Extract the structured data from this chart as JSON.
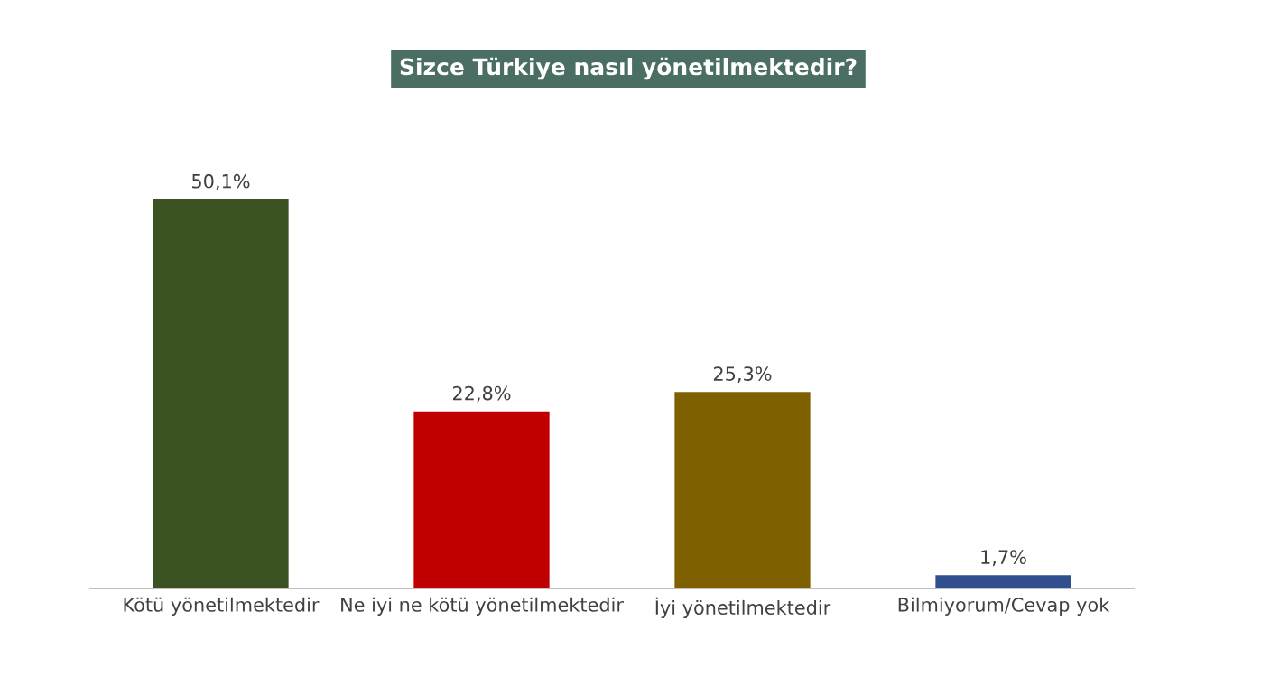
{
  "chart_data": {
    "type": "bar",
    "title": "Sizce Türkiye nasıl yönetilmektedir?",
    "categories": [
      "Kötü yönetilmektedir",
      "Ne iyi ne kötü yönetilmektedir",
      "İyi yönetilmektedir",
      "Bilmiyorum/Cevap yok"
    ],
    "values": [
      50.1,
      22.8,
      25.3,
      1.7
    ],
    "colors": [
      "#3b5323",
      "#c00000",
      "#7f6000",
      "#2f4f8f"
    ],
    "value_labels": [
      "50,1%",
      "22,8%",
      "25,3%",
      "1,7%"
    ]
  }
}
